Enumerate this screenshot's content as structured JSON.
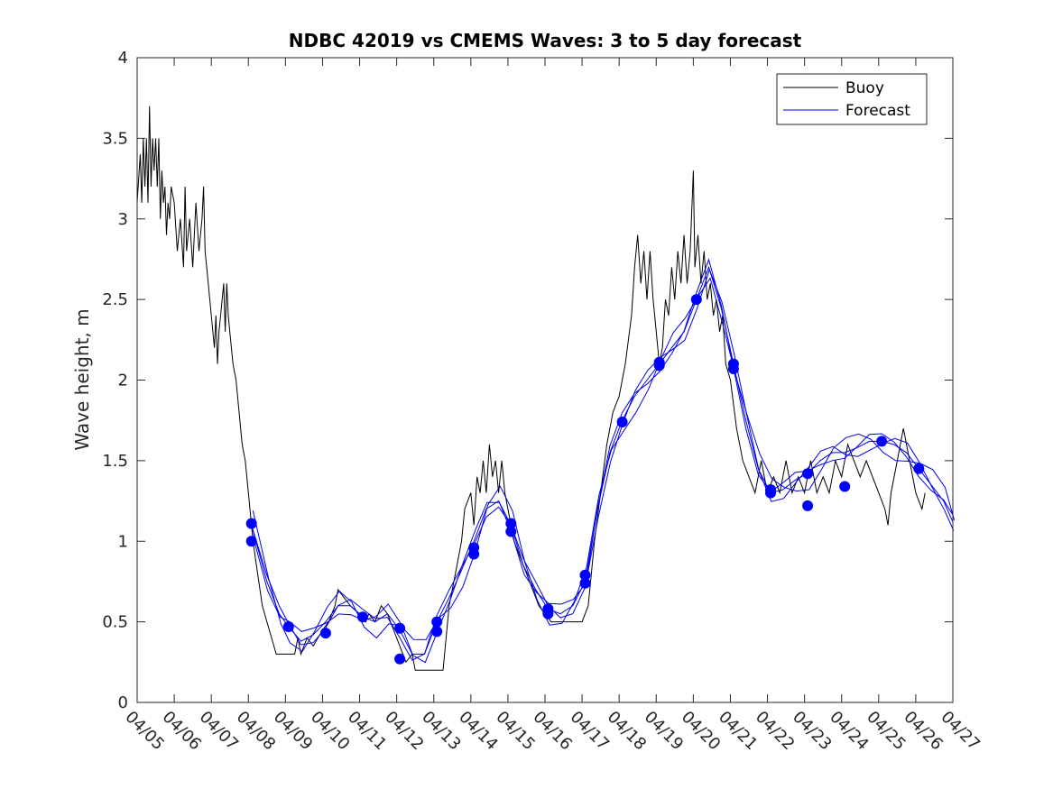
{
  "chart_data": {
    "type": "line",
    "title": "NDBC 42019 vs CMEMS Waves: 3 to 5 day forecast",
    "xlabel": "",
    "ylabel": "Wave height, m",
    "xlim": [
      "04/05",
      "04/27"
    ],
    "ylim": [
      0,
      4
    ],
    "x_tick_labels": [
      "04/05",
      "04/06",
      "04/07",
      "04/08",
      "04/09",
      "04/10",
      "04/11",
      "04/12",
      "04/13",
      "04/14",
      "04/15",
      "04/16",
      "04/17",
      "04/18",
      "04/19",
      "04/20",
      "04/21",
      "04/22",
      "04/23",
      "04/24",
      "04/25",
      "04/26",
      "04/27"
    ],
    "y_tick_labels": [
      "0",
      "0.5",
      "1",
      "1.5",
      "2",
      "2.5",
      "3",
      "3.5",
      "4"
    ],
    "y_ticks": [
      0,
      0.5,
      1,
      1.5,
      2,
      2.5,
      3,
      3.5,
      4
    ],
    "grid": false,
    "legend_position": "top-right",
    "colors": {
      "buoy": "#000000",
      "forecast": "#0000ee",
      "marker": "#0000ff"
    },
    "series": [
      {
        "name": "Buoy",
        "color": "#000000",
        "points": [
          [
            "04/05 00:00",
            3.1
          ],
          [
            "04/05 02:00",
            3.4
          ],
          [
            "04/05 03:00",
            3.1
          ],
          [
            "04/05 04:00",
            3.5
          ],
          [
            "04/05 05:00",
            3.2
          ],
          [
            "04/05 06:00",
            3.5
          ],
          [
            "04/05 07:00",
            3.1
          ],
          [
            "04/05 08:00",
            3.7
          ],
          [
            "04/05 09:00",
            3.2
          ],
          [
            "04/05 10:00",
            3.5
          ],
          [
            "04/05 11:00",
            3.3
          ],
          [
            "04/05 12:00",
            3.5
          ],
          [
            "04/05 13:00",
            3.2
          ],
          [
            "04/05 14:00",
            3.5
          ],
          [
            "04/05 15:00",
            3.0
          ],
          [
            "04/05 16:00",
            3.3
          ],
          [
            "04/05 17:00",
            3.1
          ],
          [
            "04/05 18:00",
            3.2
          ],
          [
            "04/05 19:00",
            2.9
          ],
          [
            "04/05 20:00",
            3.1
          ],
          [
            "04/05 21:00",
            3.0
          ],
          [
            "04/05 22:00",
            3.2
          ],
          [
            "04/06 00:00",
            3.1
          ],
          [
            "04/06 02:00",
            2.8
          ],
          [
            "04/06 04:00",
            3.0
          ],
          [
            "04/06 06:00",
            2.7
          ],
          [
            "04/06 07:00",
            3.2
          ],
          [
            "04/06 08:00",
            2.8
          ],
          [
            "04/06 10:00",
            3.0
          ],
          [
            "04/06 12:00",
            2.7
          ],
          [
            "04/06 14:00",
            3.1
          ],
          [
            "04/06 16:00",
            2.8
          ],
          [
            "04/06 18:00",
            3.0
          ],
          [
            "04/06 19:00",
            3.2
          ],
          [
            "04/06 20:00",
            2.8
          ],
          [
            "04/06 22:00",
            2.6
          ],
          [
            "04/07 00:00",
            2.4
          ],
          [
            "04/07 02:00",
            2.2
          ],
          [
            "04/07 03:00",
            2.4
          ],
          [
            "04/07 04:00",
            2.1
          ],
          [
            "04/07 05:00",
            2.3
          ],
          [
            "04/07 06:00",
            2.4
          ],
          [
            "04/07 07:00",
            2.5
          ],
          [
            "04/07 08:00",
            2.6
          ],
          [
            "04/07 09:00",
            2.3
          ],
          [
            "04/07 10:00",
            2.6
          ],
          [
            "04/07 11:00",
            2.4
          ],
          [
            "04/07 12:00",
            2.3
          ],
          [
            "04/07 14:00",
            2.1
          ],
          [
            "04/07 16:00",
            2.0
          ],
          [
            "04/07 18:00",
            1.8
          ],
          [
            "04/07 20:00",
            1.6
          ],
          [
            "04/07 22:00",
            1.5
          ],
          [
            "04/08 00:00",
            1.3
          ],
          [
            "04/08 03:00",
            1.0
          ],
          [
            "04/08 06:00",
            0.8
          ],
          [
            "04/08 09:00",
            0.6
          ],
          [
            "04/08 12:00",
            0.5
          ],
          [
            "04/08 15:00",
            0.4
          ],
          [
            "04/08 18:00",
            0.3
          ],
          [
            "04/09 00:00",
            0.3
          ],
          [
            "04/09 06:00",
            0.3
          ],
          [
            "04/09 08:00",
            0.4
          ],
          [
            "04/09 10:00",
            0.3
          ],
          [
            "04/09 14:00",
            0.4
          ],
          [
            "04/09 18:00",
            0.35
          ],
          [
            "04/10 00:00",
            0.45
          ],
          [
            "04/10 04:00",
            0.5
          ],
          [
            "04/10 08:00",
            0.6
          ],
          [
            "04/10 10:00",
            0.7
          ],
          [
            "04/10 14:00",
            0.65
          ],
          [
            "04/10 18:00",
            0.6
          ],
          [
            "04/11 00:00",
            0.55
          ],
          [
            "04/11 04:00",
            0.5
          ],
          [
            "04/11 06:00",
            0.55
          ],
          [
            "04/11 10:00",
            0.5
          ],
          [
            "04/11 14:00",
            0.6
          ],
          [
            "04/11 18:00",
            0.55
          ],
          [
            "04/12 00:00",
            0.4
          ],
          [
            "04/12 04:00",
            0.3
          ],
          [
            "04/12 06:00",
            0.25
          ],
          [
            "04/12 10:00",
            0.3
          ],
          [
            "04/12 12:00",
            0.2
          ],
          [
            "04/12 18:00",
            0.2
          ],
          [
            "04/13 00:00",
            0.2
          ],
          [
            "04/13 06:00",
            0.2
          ],
          [
            "04/13 08:00",
            0.4
          ],
          [
            "04/13 10:00",
            0.6
          ],
          [
            "04/13 14:00",
            0.8
          ],
          [
            "04/13 18:00",
            1.0
          ],
          [
            "04/13 20:00",
            1.2
          ],
          [
            "04/14 00:00",
            1.3
          ],
          [
            "04/14 02:00",
            1.1
          ],
          [
            "04/14 04:00",
            1.4
          ],
          [
            "04/14 06:00",
            1.3
          ],
          [
            "04/14 08:00",
            1.5
          ],
          [
            "04/14 10:00",
            1.3
          ],
          [
            "04/14 12:00",
            1.6
          ],
          [
            "04/14 14:00",
            1.4
          ],
          [
            "04/14 16:00",
            1.5
          ],
          [
            "04/14 18:00",
            1.3
          ],
          [
            "04/14 20:00",
            1.5
          ],
          [
            "04/14 22:00",
            1.3
          ],
          [
            "04/15 00:00",
            1.2
          ],
          [
            "04/15 04:00",
            1.0
          ],
          [
            "04/15 08:00",
            0.9
          ],
          [
            "04/15 12:00",
            0.8
          ],
          [
            "04/15 16:00",
            0.7
          ],
          [
            "04/15 20:00",
            0.6
          ],
          [
            "04/16 00:00",
            0.55
          ],
          [
            "04/16 04:00",
            0.5
          ],
          [
            "04/16 12:00",
            0.5
          ],
          [
            "04/16 20:00",
            0.5
          ],
          [
            "04/17 00:00",
            0.5
          ],
          [
            "04/17 04:00",
            0.6
          ],
          [
            "04/17 06:00",
            0.8
          ],
          [
            "04/17 08:00",
            1.0
          ],
          [
            "04/17 12:00",
            1.3
          ],
          [
            "04/17 16:00",
            1.6
          ],
          [
            "04/17 20:00",
            1.8
          ],
          [
            "04/18 00:00",
            1.9
          ],
          [
            "04/18 04:00",
            2.1
          ],
          [
            "04/18 08:00",
            2.4
          ],
          [
            "04/18 10:00",
            2.7
          ],
          [
            "04/18 12:00",
            2.9
          ],
          [
            "04/18 14:00",
            2.6
          ],
          [
            "04/18 16:00",
            2.8
          ],
          [
            "04/18 18:00",
            2.5
          ],
          [
            "04/18 20:00",
            2.8
          ],
          [
            "04/18 22:00",
            2.5
          ],
          [
            "04/19 00:00",
            2.3
          ],
          [
            "04/19 02:00",
            2.1
          ],
          [
            "04/19 04:00",
            2.2
          ],
          [
            "04/19 06:00",
            2.5
          ],
          [
            "04/19 08:00",
            2.4
          ],
          [
            "04/19 10:00",
            2.7
          ],
          [
            "04/19 12:00",
            2.5
          ],
          [
            "04/19 14:00",
            2.8
          ],
          [
            "04/19 16:00",
            2.6
          ],
          [
            "04/19 18:00",
            2.9
          ],
          [
            "04/19 20:00",
            2.6
          ],
          [
            "04/19 22:00",
            2.8
          ],
          [
            "04/20 00:00",
            3.3
          ],
          [
            "04/20 01:00",
            2.7
          ],
          [
            "04/20 03:00",
            2.9
          ],
          [
            "04/20 05:00",
            2.6
          ],
          [
            "04/20 07:00",
            2.8
          ],
          [
            "04/20 09:00",
            2.5
          ],
          [
            "04/20 11:00",
            2.6
          ],
          [
            "04/20 13:00",
            2.4
          ],
          [
            "04/20 15:00",
            2.5
          ],
          [
            "04/20 17:00",
            2.3
          ],
          [
            "04/20 19:00",
            2.4
          ],
          [
            "04/20 21:00",
            2.1
          ],
          [
            "04/21 00:00",
            2.0
          ],
          [
            "04/21 04:00",
            1.7
          ],
          [
            "04/21 08:00",
            1.5
          ],
          [
            "04/21 12:00",
            1.4
          ],
          [
            "04/21 16:00",
            1.3
          ],
          [
            "04/21 20:00",
            1.5
          ],
          [
            "04/22 00:00",
            1.3
          ],
          [
            "04/22 04:00",
            1.4
          ],
          [
            "04/22 08:00",
            1.3
          ],
          [
            "04/22 12:00",
            1.5
          ],
          [
            "04/22 16:00",
            1.3
          ],
          [
            "04/22 20:00",
            1.4
          ],
          [
            "04/23 00:00",
            1.3
          ],
          [
            "04/23 04:00",
            1.5
          ],
          [
            "04/23 08:00",
            1.3
          ],
          [
            "04/23 12:00",
            1.4
          ],
          [
            "04/23 16:00",
            1.3
          ],
          [
            "04/23 20:00",
            1.5
          ],
          [
            "04/24 00:00",
            1.4
          ],
          [
            "04/24 04:00",
            1.6
          ],
          [
            "04/24 08:00",
            1.5
          ],
          [
            "04/24 12:00",
            1.4
          ],
          [
            "04/24 16:00",
            1.5
          ],
          [
            "04/24 20:00",
            1.4
          ],
          [
            "04/25 00:00",
            1.3
          ],
          [
            "04/25 04:00",
            1.2
          ],
          [
            "04/25 06:00",
            1.1
          ],
          [
            "04/25 08:00",
            1.3
          ],
          [
            "04/25 12:00",
            1.5
          ],
          [
            "04/25 16:00",
            1.7
          ],
          [
            "04/25 20:00",
            1.5
          ],
          [
            "04/26 00:00",
            1.3
          ],
          [
            "04/26 04:00",
            1.2
          ],
          [
            "04/26 06:00",
            1.3
          ]
        ]
      },
      {
        "name": "Forecast",
        "color": "#0000ee",
        "points": [
          [
            "04/08 02:00",
            1.1
          ],
          [
            "04/08 12:00",
            0.75
          ],
          [
            "04/08 20:00",
            0.55
          ],
          [
            "04/09 02:00",
            0.47
          ],
          [
            "04/09 10:00",
            0.38
          ],
          [
            "04/09 18:00",
            0.42
          ],
          [
            "04/10 02:00",
            0.5
          ],
          [
            "04/10 10:00",
            0.6
          ],
          [
            "04/10 18:00",
            0.6
          ],
          [
            "04/11 02:00",
            0.53
          ],
          [
            "04/11 10:00",
            0.5
          ],
          [
            "04/11 18:00",
            0.55
          ],
          [
            "04/12 02:00",
            0.45
          ],
          [
            "04/12 10:00",
            0.3
          ],
          [
            "04/12 18:00",
            0.3
          ],
          [
            "04/13 02:00",
            0.5
          ],
          [
            "04/13 10:00",
            0.65
          ],
          [
            "04/13 18:00",
            0.82
          ],
          [
            "04/14 02:00",
            1.0
          ],
          [
            "04/14 10:00",
            1.2
          ],
          [
            "04/14 18:00",
            1.25
          ],
          [
            "04/15 02:00",
            1.1
          ],
          [
            "04/15 10:00",
            0.85
          ],
          [
            "04/15 18:00",
            0.7
          ],
          [
            "04/16 02:00",
            0.58
          ],
          [
            "04/16 10:00",
            0.55
          ],
          [
            "04/16 18:00",
            0.6
          ],
          [
            "04/17 02:00",
            0.75
          ],
          [
            "04/17 10:00",
            1.2
          ],
          [
            "04/17 18:00",
            1.55
          ],
          [
            "04/18 02:00",
            1.75
          ],
          [
            "04/18 10:00",
            1.9
          ],
          [
            "04/18 18:00",
            2.0
          ],
          [
            "04/19 02:00",
            2.1
          ],
          [
            "04/19 10:00",
            2.2
          ],
          [
            "04/19 18:00",
            2.3
          ],
          [
            "04/20 02:00",
            2.5
          ],
          [
            "04/20 10:00",
            2.7
          ],
          [
            "04/20 18:00",
            2.45
          ],
          [
            "04/21 02:00",
            2.1
          ],
          [
            "04/21 10:00",
            1.75
          ],
          [
            "04/21 18:00",
            1.45
          ],
          [
            "04/22 02:00",
            1.3
          ],
          [
            "04/22 10:00",
            1.32
          ],
          [
            "04/22 18:00",
            1.38
          ],
          [
            "04/23 02:00",
            1.42
          ],
          [
            "04/23 10:00",
            1.5
          ],
          [
            "04/23 18:00",
            1.55
          ],
          [
            "04/24 02:00",
            1.55
          ],
          [
            "04/24 10:00",
            1.58
          ],
          [
            "04/24 18:00",
            1.62
          ],
          [
            "04/25 02:00",
            1.62
          ],
          [
            "04/25 10:00",
            1.6
          ],
          [
            "04/25 18:00",
            1.55
          ],
          [
            "04/26 02:00",
            1.45
          ],
          [
            "04/26 10:00",
            1.35
          ],
          [
            "04/26 18:00",
            1.25
          ],
          [
            "04/27 00:00",
            1.12
          ]
        ]
      }
    ],
    "markers": [
      [
        "04/08 02:00",
        1.11
      ],
      [
        "04/08 02:00",
        1.0
      ],
      [
        "04/09 02:00",
        0.47
      ],
      [
        "04/10 02:00",
        0.43
      ],
      [
        "04/11 02:00",
        0.53
      ],
      [
        "04/12 02:00",
        0.46
      ],
      [
        "04/12 02:00",
        0.27
      ],
      [
        "04/13 02:00",
        0.5
      ],
      [
        "04/13 02:00",
        0.44
      ],
      [
        "04/14 02:00",
        0.96
      ],
      [
        "04/14 02:00",
        0.92
      ],
      [
        "04/15 02:00",
        1.11
      ],
      [
        "04/15 02:00",
        1.06
      ],
      [
        "04/16 02:00",
        0.58
      ],
      [
        "04/16 02:00",
        0.55
      ],
      [
        "04/17 02:00",
        0.79
      ],
      [
        "04/17 02:00",
        0.74
      ],
      [
        "04/18 02:00",
        1.74
      ],
      [
        "04/19 02:00",
        2.11
      ],
      [
        "04/19 02:00",
        2.09
      ],
      [
        "04/20 02:00",
        2.5
      ],
      [
        "04/21 02:00",
        2.1
      ],
      [
        "04/21 02:00",
        2.07
      ],
      [
        "04/22 02:00",
        1.32
      ],
      [
        "04/22 02:00",
        1.3
      ],
      [
        "04/23 02:00",
        1.42
      ],
      [
        "04/23 02:00",
        1.22
      ],
      [
        "04/24 02:00",
        1.34
      ],
      [
        "04/25 02:00",
        1.62
      ],
      [
        "04/26 02:00",
        1.45
      ]
    ]
  },
  "legend": {
    "items": [
      {
        "label": "Buoy"
      },
      {
        "label": "Forecast"
      }
    ]
  }
}
